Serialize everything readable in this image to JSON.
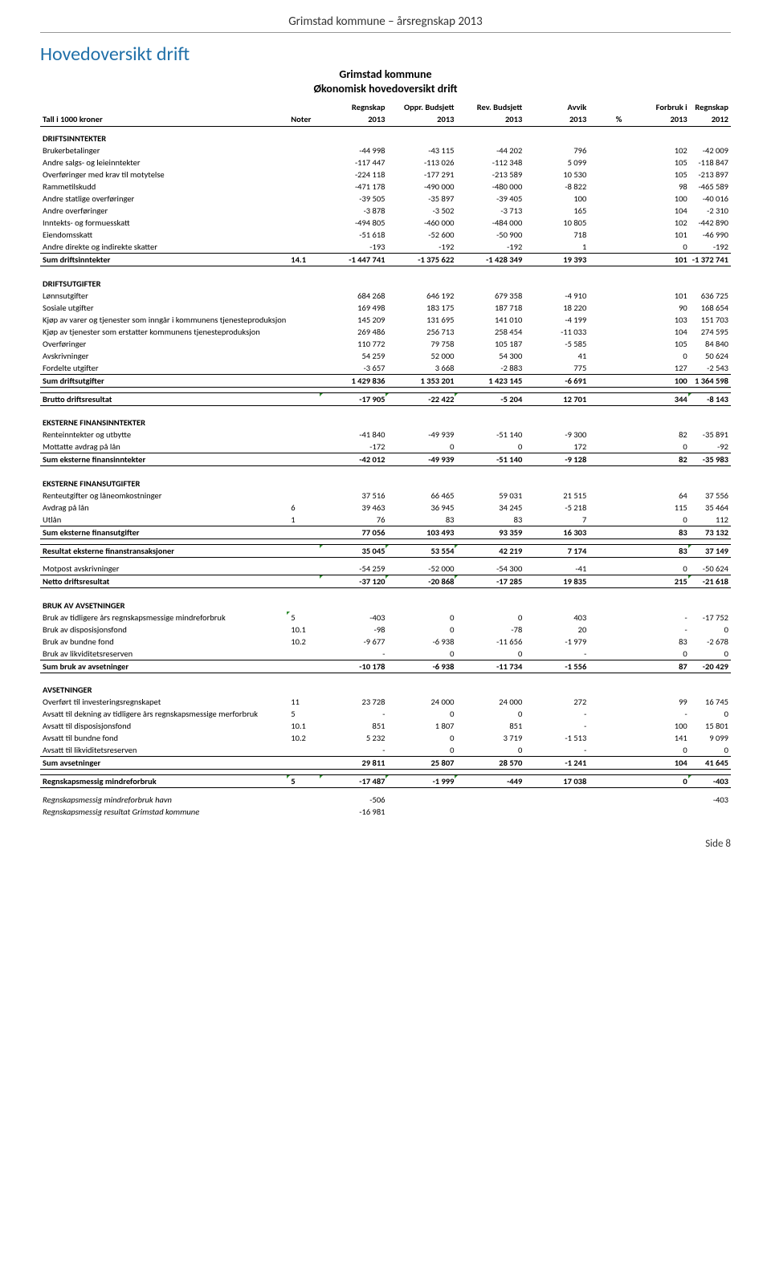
{
  "doc_header": "Grimstad kommune – årsregnskap 2013",
  "main_title": "Hovedoversikt drift",
  "subtitle1": "Grimstad kommune",
  "subtitle2": "Økonomisk hovedoversikt drift",
  "col_row1": [
    "",
    "",
    "Regnskap",
    "Oppr. Budsjett",
    "Rev. Budsjett",
    "Avvik",
    "",
    "Forbruk i",
    "Regnskap"
  ],
  "col_row2": [
    "Tall i 1000 kroner",
    "Noter",
    "2013",
    "2013",
    "2013",
    "2013",
    "%",
    "2013",
    "2012"
  ],
  "sections": {
    "driftsinntekter": {
      "title": "DRIFTSINNTEKTER",
      "rows": [
        [
          "Brukerbetalinger",
          "",
          "-44 998",
          "-43 115",
          "-44 202",
          "796",
          "",
          "102",
          "-42 009"
        ],
        [
          "Andre salgs- og leieinntekter",
          "",
          "-117 447",
          "-113 026",
          "-112 348",
          "5 099",
          "",
          "105",
          "-118 847"
        ],
        [
          "Overføringer med krav til motytelse",
          "",
          "-224 118",
          "-177 291",
          "-213 589",
          "10 530",
          "",
          "105",
          "-213 897"
        ],
        [
          "Rammetilskudd",
          "",
          "-471 178",
          "-490 000",
          "-480 000",
          "-8 822",
          "",
          "98",
          "-465 589"
        ],
        [
          "Andre statlige overføringer",
          "",
          "-39 505",
          "-35 897",
          "-39 405",
          "100",
          "",
          "100",
          "-40 016"
        ],
        [
          "Andre overføringer",
          "",
          "-3 878",
          "-3 502",
          "-3 713",
          "165",
          "",
          "104",
          "-2 310"
        ],
        [
          "Inntekts- og formuesskatt",
          "",
          "-494 805",
          "-460 000",
          "-484 000",
          "10 805",
          "",
          "102",
          "-442 890"
        ],
        [
          "Eiendomsskatt",
          "",
          "-51 618",
          "-52 600",
          "-50 900",
          "718",
          "",
          "101",
          "-46 990"
        ],
        [
          "Andre direkte og indirekte skatter",
          "",
          "-193",
          "-192",
          "-192",
          "1",
          "",
          "0",
          "-192"
        ]
      ],
      "sum": [
        "Sum driftsinntekter",
        "14.1",
        "-1 447 741",
        "-1 375 622",
        "-1 428 349",
        "19 393",
        "",
        "101",
        "-1 372 741"
      ]
    },
    "driftsutgifter": {
      "title": "DRIFTSUTGIFTER",
      "rows": [
        [
          "Lønnsutgifter",
          "",
          "684 268",
          "646 192",
          "679 358",
          "-4 910",
          "",
          "101",
          "636 725"
        ],
        [
          "Sosiale utgifter",
          "",
          "169 498",
          "183 175",
          "187 718",
          "18 220",
          "",
          "90",
          "168 654"
        ],
        [
          "Kjøp av varer og tjenester som inngår i kommunens tjenesteproduksjon",
          "",
          "145 209",
          "131 695",
          "141 010",
          "-4 199",
          "",
          "103",
          "151 703"
        ],
        [
          "Kjøp av tjenester som erstatter kommunens tjenesteproduksjon",
          "",
          "269 486",
          "256 713",
          "258 454",
          "-11 033",
          "",
          "104",
          "274 595"
        ],
        [
          "Overføringer",
          "",
          "110 772",
          "79 758",
          "105 187",
          "-5 585",
          "",
          "105",
          "84 840"
        ],
        [
          "Avskrivninger",
          "",
          "54 259",
          "52 000",
          "54 300",
          "41",
          "",
          "0",
          "50 624"
        ],
        [
          "Fordelte utgifter",
          "",
          "-3 657",
          "3 668",
          "-2 883",
          "775",
          "",
          "127",
          "-2 543"
        ]
      ],
      "sum": [
        "Sum driftsutgifter",
        "",
        "1 429 836",
        "1 353 201",
        "1 423 145",
        "-6 691",
        "",
        "100",
        "1 364 598"
      ]
    },
    "brutto": [
      "Brutto driftsresultat",
      "",
      "-17 905",
      "-22 422",
      "-5 204",
      "12 701",
      "",
      "344",
      "-8 143"
    ],
    "eksterne_inn": {
      "title": "EKSTERNE FINANSINNTEKTER",
      "rows": [
        [
          "Renteinntekter og utbytte",
          "",
          "-41 840",
          "-49 939",
          "-51 140",
          "-9 300",
          "",
          "82",
          "-35 891"
        ],
        [
          "Mottatte avdrag på lån",
          "",
          "-172",
          "0",
          "0",
          "172",
          "",
          "0",
          "-92"
        ]
      ],
      "sum": [
        "Sum eksterne finansinntekter",
        "",
        "-42 012",
        "-49 939",
        "-51 140",
        "-9 128",
        "",
        "82",
        "-35 983"
      ]
    },
    "eksterne_ut": {
      "title": "EKSTERNE FINANSUTGIFTER",
      "rows": [
        [
          "Renteutgifter og låneomkostninger",
          "",
          "37 516",
          "66 465",
          "59 031",
          "21 515",
          "",
          "64",
          "37 556"
        ],
        [
          "Avdrag på lån",
          "6",
          "39 463",
          "36 945",
          "34 245",
          "-5 218",
          "",
          "115",
          "35 464"
        ],
        [
          "Utlån",
          "1",
          "76",
          "83",
          "83",
          "7",
          "",
          "0",
          "112"
        ]
      ],
      "sum": [
        "Sum eksterne finansutgifter",
        "",
        "77 056",
        "103 493",
        "93 359",
        "16 303",
        "",
        "83",
        "73 132"
      ]
    },
    "resultat_eksterne": [
      "Resultat eksterne finanstransaksjoner",
      "",
      "35 045",
      "53 554",
      "42 219",
      "7 174",
      "",
      "83",
      "37 149"
    ],
    "motpost": [
      "Motpost avskrivninger",
      "",
      "-54 259",
      "-52 000",
      "-54 300",
      "-41",
      "",
      "0",
      "-50 624"
    ],
    "netto": [
      "Netto driftsresultat",
      "",
      "-37 120",
      "-20 868",
      "-17 285",
      "19 835",
      "",
      "215",
      "-21 618"
    ],
    "bruk_avsetninger": {
      "title": "BRUK AV AVSETNINGER",
      "rows": [
        [
          "Bruk av tidligere års regnskapsmessige mindreforbruk",
          "5",
          "-403",
          "0",
          "0",
          "403",
          "",
          "-",
          "-17 752"
        ],
        [
          "Bruk av disposisjonsfond",
          "10.1",
          "-98",
          "0",
          "-78",
          "20",
          "",
          "-",
          "0"
        ],
        [
          "Bruk av bundne fond",
          "10.2",
          "-9 677",
          "-6 938",
          "-11 656",
          "-1 979",
          "",
          "83",
          "-2 678"
        ],
        [
          "Bruk av likviditetsreserven",
          "",
          "-",
          "0",
          "0",
          "-",
          "",
          "0",
          "0"
        ]
      ],
      "sum": [
        "Sum bruk av avsetninger",
        "",
        "-10 178",
        "-6 938",
        "-11 734",
        "-1 556",
        "",
        "87",
        "-20 429"
      ]
    },
    "avsetninger": {
      "title": "AVSETNINGER",
      "rows": [
        [
          "Overført til investeringsregnskapet",
          "11",
          "23 728",
          "24 000",
          "24 000",
          "272",
          "",
          "99",
          "16 745"
        ],
        [
          "Avsatt til dekning av tidligere års regnskapsmessige merforbruk",
          "5",
          "-",
          "0",
          "0",
          "-",
          "",
          "-",
          "0"
        ],
        [
          "Avsatt til disposisjonsfond",
          "10.1",
          "851",
          "1 807",
          "851",
          "-",
          "",
          "100",
          "15 801"
        ],
        [
          "Avsatt til bundne fond",
          "10.2",
          "5 232",
          "0",
          "3 719",
          "-1 513",
          "",
          "141",
          "9 099"
        ],
        [
          "Avsatt til likviditetsreserven",
          "",
          "-",
          "0",
          "0",
          "-",
          "",
          "0",
          "0"
        ]
      ],
      "sum": [
        "Sum avsetninger",
        "",
        "29 811",
        "25 807",
        "28 570",
        "-1 241",
        "",
        "104",
        "41 645"
      ]
    },
    "mindreforbruk": [
      "Regnskapsmessig mindreforbruk",
      "5",
      "-17 487",
      "-1 999",
      "-449",
      "17 038",
      "",
      "0",
      "-403"
    ],
    "footer_rows": [
      [
        "Regnskapsmessig mindreforbruk havn",
        "",
        "-506",
        "",
        "",
        "",
        "",
        "",
        "-403"
      ],
      [
        "Regnskapsmessig resultat Grimstad kommune",
        "",
        "-16 981",
        "",
        "",
        "",
        "",
        "",
        ""
      ]
    ]
  },
  "page_footer": "Side 8"
}
